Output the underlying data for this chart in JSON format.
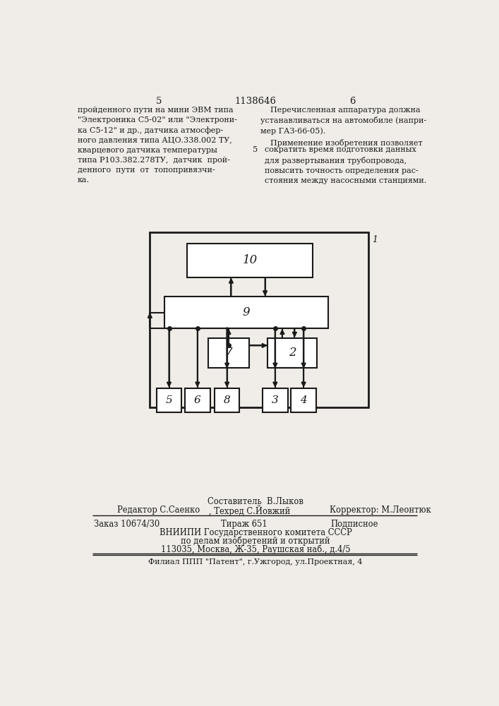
{
  "page_number_left": "5",
  "page_number_center": "1138646",
  "page_number_right": "6",
  "left_column_text": "пройденного пути на мини ЭВМ типа\n\"Электроника С5-02\" или \"Электрони-\nка С5-12\" и др., датчика атмосфер-\nного давления типа АЦО.338.002 ТУ,\nкварцевого датчика температуры\nтипа Р103.382.278ТУ,  датчик  прой-\nденного  пути  от  топопривязчи-\nка.",
  "right_column_text_1": "    Перечисленная аппаратура должна\nустанавливаться на автомобиле (напри-\nмер ГАЗ-66-05).",
  "right_column_text_2": "    Применение изобретения позволяет",
  "right_column_line_num": "5",
  "right_column_text_3": "сократить время подготовки данных\nдля развертывания трубопровода,\nповысить точность определения рас-\nстояния между насосными станциями.",
  "footer_sestavitel": "Составитель  В.Лыков",
  "footer_redaktor": "Редактор С.Саенко",
  "footer_tekhred": ", Техред С.Йовжий",
  "footer_korrektor": "Корректор: М.Леонтюк",
  "footer_zakaz": "Заказ 10674/30",
  "footer_tirazh": "Тираж 651",
  "footer_podpisnoe": "Подписное",
  "footer_vniishi": "ВНИИПИ Государственного комитета СССР",
  "footer_po_delam": "по делам изобретений и открытий",
  "footer_address": "113035, Москва, Ж-35, Раушская наб., д.4/5",
  "footer_filial": "Филиал ППП \"Патент\", г.Ужгород, ул.Проектная, 4",
  "bg_color": "#f0ede8",
  "box_color": "#1a1a1a",
  "text_color": "#1a1a1a"
}
